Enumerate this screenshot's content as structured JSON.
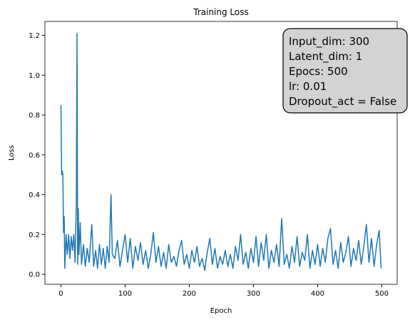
{
  "chart_data": {
    "type": "line",
    "title": "Training Loss",
    "xlabel": "Epoch",
    "ylabel": "Loss",
    "annotation": [
      "Input_dim: 300",
      "Latent_dim: 1",
      "Epocs: 500",
      "lr: 0.01",
      "Dropout_act = False"
    ],
    "xlim": [
      -25,
      524
    ],
    "ylim": [
      -0.05,
      1.27
    ],
    "xticks": [
      0,
      100,
      200,
      300,
      400,
      500
    ],
    "yticks": [
      {
        "value": 0,
        "label": "0.0"
      },
      0.2,
      0.4,
      0.6,
      0.8,
      {
        "value": 1,
        "label": "1.0"
      },
      1.2
    ],
    "series": [
      {
        "name": "loss",
        "color": "#1f77b4",
        "x": [
          0,
          1,
          2,
          3,
          4,
          5,
          6,
          8,
          10,
          12,
          14,
          16,
          18,
          20,
          22,
          24,
          25,
          26,
          27,
          28,
          30,
          32,
          35,
          38,
          41,
          44,
          48,
          51,
          54,
          57,
          60,
          63,
          66,
          69,
          72,
          75,
          78,
          80,
          84,
          88,
          92,
          96,
          100,
          104,
          108,
          112,
          116,
          120,
          124,
          128,
          132,
          136,
          140,
          144,
          148,
          152,
          156,
          160,
          164,
          168,
          172,
          176,
          180,
          184,
          188,
          192,
          196,
          200,
          204,
          208,
          212,
          216,
          220,
          224,
          228,
          232,
          236,
          240,
          244,
          248,
          252,
          256,
          260,
          264,
          268,
          272,
          276,
          280,
          284,
          288,
          292,
          296,
          300,
          304,
          308,
          312,
          316,
          320,
          324,
          328,
          332,
          336,
          340,
          344,
          348,
          352,
          356,
          360,
          364,
          368,
          372,
          376,
          380,
          384,
          388,
          392,
          396,
          400,
          404,
          408,
          412,
          416,
          420,
          424,
          428,
          432,
          436,
          440,
          444,
          448,
          452,
          456,
          460,
          464,
          468,
          472,
          476,
          480,
          484,
          488,
          492,
          496,
          499
        ],
        "values": [
          0.85,
          0.5,
          0.52,
          0.5,
          0.21,
          0.29,
          0.03,
          0.2,
          0.1,
          0.2,
          0.08,
          0.19,
          0.12,
          0.2,
          0.06,
          0.38,
          1.21,
          0.05,
          0.33,
          0.1,
          0.26,
          0.05,
          0.15,
          0.04,
          0.13,
          0.06,
          0.25,
          0.04,
          0.12,
          0.03,
          0.15,
          0.05,
          0.13,
          0.03,
          0.14,
          0.06,
          0.4,
          0.1,
          0.08,
          0.17,
          0.04,
          0.12,
          0.2,
          0.06,
          0.18,
          0.03,
          0.14,
          0.07,
          0.16,
          0.05,
          0.12,
          0.03,
          0.1,
          0.21,
          0.06,
          0.14,
          0.04,
          0.11,
          0.03,
          0.15,
          0.06,
          0.09,
          0.04,
          0.12,
          0.17,
          0.05,
          0.1,
          0.03,
          0.12,
          0.06,
          0.14,
          0.04,
          0.08,
          0.02,
          0.11,
          0.18,
          0.05,
          0.13,
          0.03,
          0.09,
          0.05,
          0.12,
          0.04,
          0.1,
          0.03,
          0.14,
          0.07,
          0.2,
          0.05,
          0.11,
          0.03,
          0.13,
          0.06,
          0.19,
          0.04,
          0.16,
          0.07,
          0.2,
          0.03,
          0.12,
          0.06,
          0.15,
          0.04,
          0.28,
          0.05,
          0.1,
          0.03,
          0.14,
          0.06,
          0.19,
          0.04,
          0.11,
          0.07,
          0.2,
          0.03,
          0.12,
          0.05,
          0.15,
          0.04,
          0.13,
          0.06,
          0.18,
          0.23,
          0.05,
          0.12,
          0.03,
          0.16,
          0.06,
          0.11,
          0.19,
          0.04,
          0.13,
          0.07,
          0.17,
          0.05,
          0.14,
          0.25,
          0.06,
          0.18,
          0.04,
          0.15,
          0.22,
          0.03
        ]
      }
    ]
  }
}
